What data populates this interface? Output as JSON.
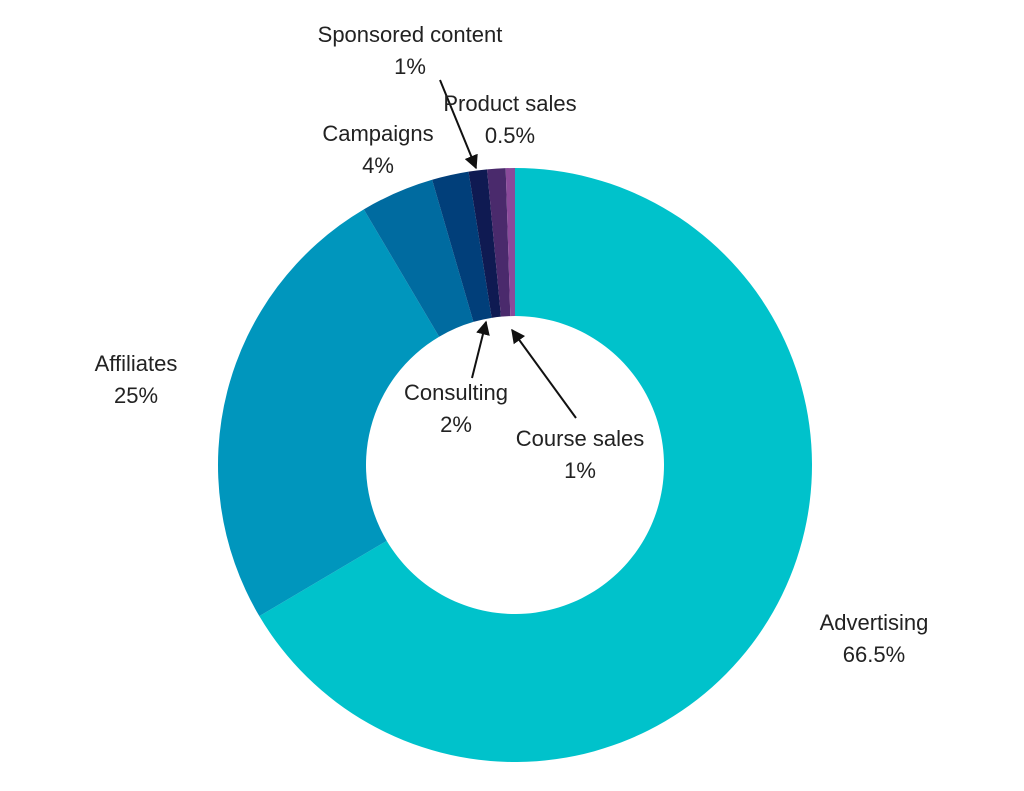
{
  "chart_data": {
    "type": "pie",
    "title": "",
    "donut": true,
    "legend": "none",
    "start_angle_deg": 0,
    "direction": "clockwise",
    "categories": [
      "Advertising",
      "Affiliates",
      "Campaigns",
      "Consulting",
      "Sponsored content",
      "Course sales",
      "Product sales"
    ],
    "values": [
      66.5,
      25,
      4,
      2,
      1,
      1,
      0.5
    ],
    "value_labels": [
      "66.5%",
      "25%",
      "4%",
      "2%",
      "1%",
      "1%",
      "0.5%"
    ],
    "colors": [
      "#00c2cb",
      "#0096bd",
      "#006ba0",
      "#013f7a",
      "#0f1a52",
      "#4a2a6c",
      "#8a4a9a"
    ]
  }
}
